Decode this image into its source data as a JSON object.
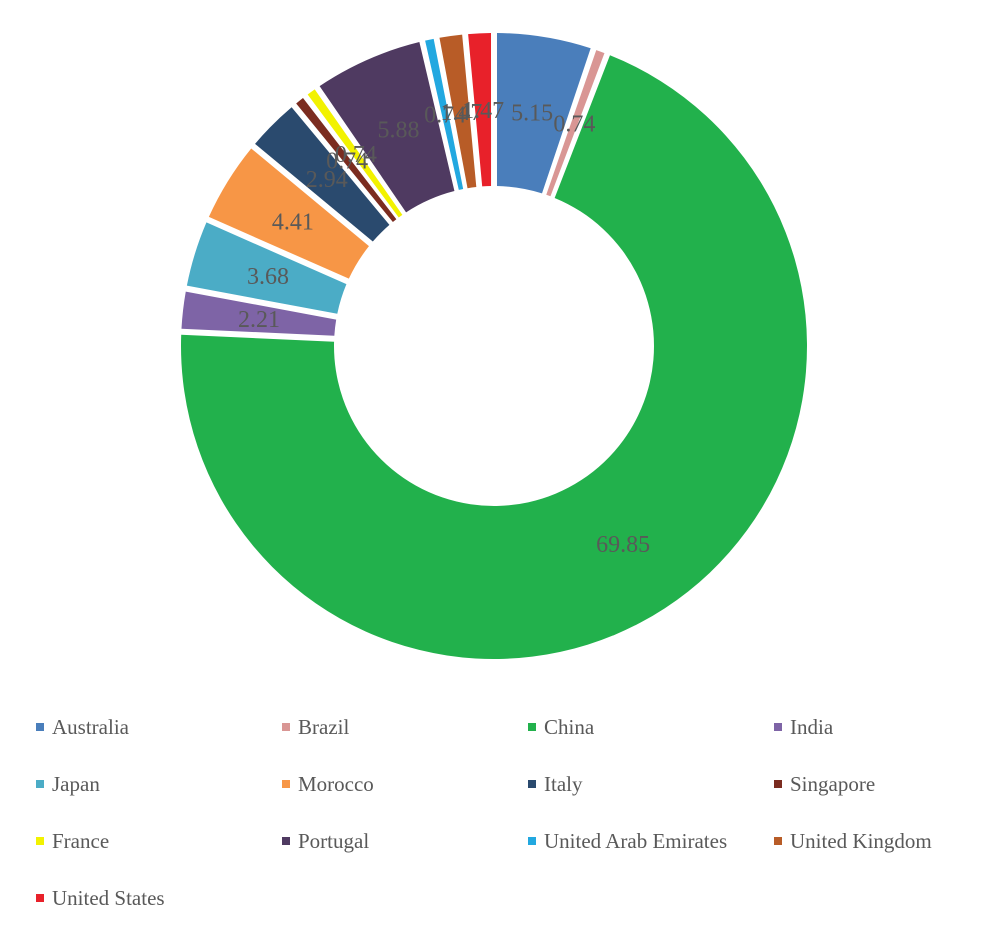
{
  "chart_data": {
    "type": "pie",
    "variant": "donut",
    "legend_position": "bottom",
    "title": "",
    "categories": [
      "Australia",
      "Brazil",
      "China",
      "India",
      "Japan",
      "Morocco",
      "Italy",
      "Singapore",
      "France",
      "Portugal",
      "United Arab Emirates",
      "United Kingdom",
      "United States"
    ],
    "series": [
      {
        "values": [
          5.15,
          0.74,
          69.85,
          2.21,
          3.68,
          4.41,
          2.94,
          0.74,
          0.74,
          5.88,
          0.74,
          1.47,
          1.47
        ],
        "data_labels": [
          "5.15",
          "0.74",
          "69.85",
          "2.21",
          "3.68",
          "4.41",
          "2.94",
          "0.74",
          "0.74",
          "5.88",
          "0.74",
          "1.47",
          "1.47"
        ]
      }
    ],
    "colors": [
      "#4a7ebb",
      "#d99694",
      "#22b14c",
      "#7e64a6",
      "#4bacc6",
      "#f79646",
      "#2a4a6e",
      "#7b2c20",
      "#f2f200",
      "#4f3a61",
      "#22a8e0",
      "#b85c27",
      "#e8212a"
    ]
  }
}
